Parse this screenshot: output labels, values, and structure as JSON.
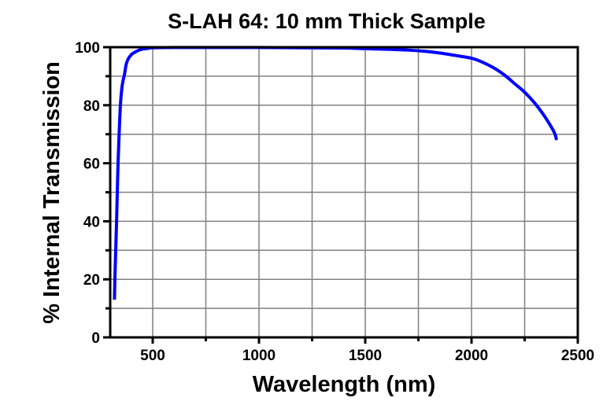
{
  "chart_data": {
    "type": "line",
    "title": "S-LAH 64: 10 mm Thick Sample",
    "xlabel": "Wavelength (nm)",
    "ylabel": "% Internal Transmission",
    "xlim": [
      300,
      2500
    ],
    "ylim": [
      0,
      100
    ],
    "xticks": [
      "500",
      "1000",
      "1500",
      "2000",
      "2500"
    ],
    "yticks": [
      "0",
      "20",
      "40",
      "60",
      "80",
      "100"
    ],
    "grid": true,
    "series_color": "#0000ff",
    "series": [
      {
        "x": [
          320,
          322,
          326,
          330,
          334,
          337,
          342,
          348,
          355,
          362,
          367,
          375,
          385,
          400,
          410,
          430,
          450,
          480,
          500,
          600,
          800,
          1000,
          1200,
          1400,
          1500,
          1600,
          1700,
          1778,
          1850,
          1920,
          2000,
          2040,
          2081,
          2120,
          2167,
          2200,
          2241,
          2280,
          2315,
          2350,
          2389,
          2400
        ],
        "y": [
          13,
          20,
          30,
          40,
          52,
          60,
          70,
          80,
          86,
          89,
          90.5,
          94,
          96,
          97.5,
          98,
          98.8,
          99.3,
          99.6,
          99.8,
          99.9,
          99.9,
          99.9,
          99.8,
          99.7,
          99.5,
          99.3,
          99.0,
          98.6,
          98.0,
          97.2,
          96.2,
          95.2,
          93.8,
          92.2,
          89.7,
          87.6,
          85.1,
          82.2,
          79.1,
          75.5,
          70.7,
          68
        ]
      }
    ]
  }
}
